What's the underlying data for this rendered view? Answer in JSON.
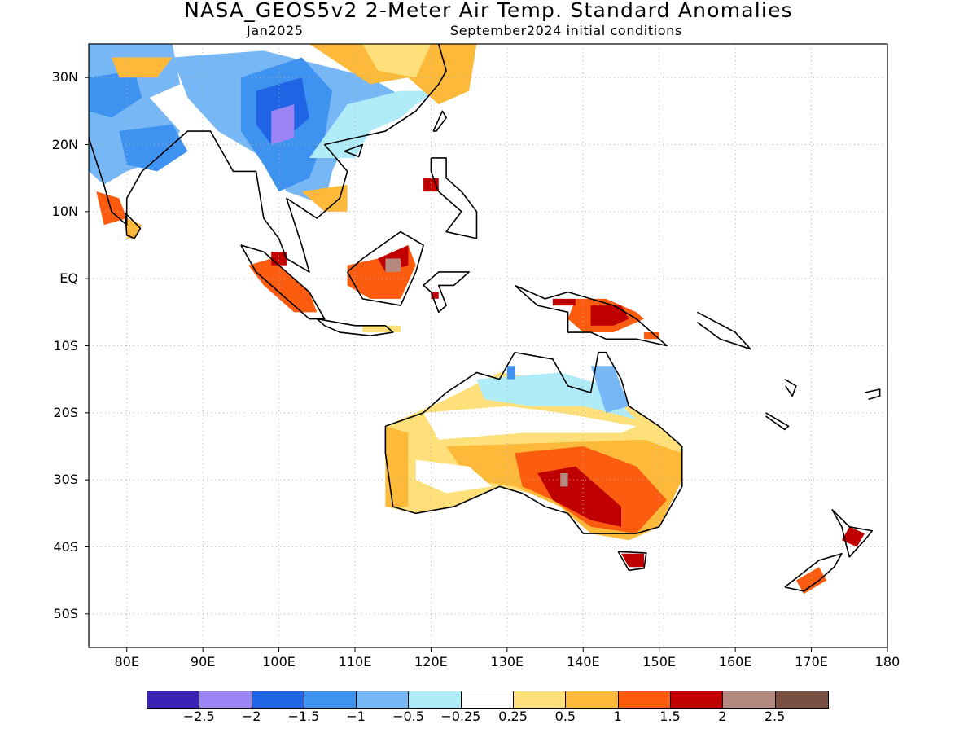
{
  "map": {
    "title": "NASA_GEOS5v2 2-Meter Air Temp. Standard Anomalies",
    "subtitle_left": "Jan2025",
    "subtitle_right": "September2024 initial conditions",
    "extent": {
      "lon": [
        75,
        180
      ],
      "lat": [
        -55,
        35
      ]
    },
    "lat_ticks": [
      {
        "value": 30,
        "label": "30N"
      },
      {
        "value": 20,
        "label": "20N"
      },
      {
        "value": 10,
        "label": "10N"
      },
      {
        "value": 0,
        "label": "EQ"
      },
      {
        "value": -10,
        "label": "10S"
      },
      {
        "value": -20,
        "label": "20S"
      },
      {
        "value": -30,
        "label": "30S"
      },
      {
        "value": -40,
        "label": "40S"
      },
      {
        "value": -50,
        "label": "50S"
      }
    ],
    "lon_ticks": [
      {
        "value": 80,
        "label": "80E"
      },
      {
        "value": 90,
        "label": "90E"
      },
      {
        "value": 100,
        "label": "100E"
      },
      {
        "value": 110,
        "label": "110E"
      },
      {
        "value": 120,
        "label": "120E"
      },
      {
        "value": 130,
        "label": "130E"
      },
      {
        "value": 140,
        "label": "140E"
      },
      {
        "value": 150,
        "label": "150E"
      },
      {
        "value": 160,
        "label": "160E"
      },
      {
        "value": 170,
        "label": "170E"
      },
      {
        "value": 180,
        "label": "180"
      }
    ],
    "colorbar": {
      "colors": [
        "#3b22b6",
        "#9d84f5",
        "#1f64e4",
        "#3e93f0",
        "#78b7f5",
        "#b0ecf8",
        "#ffffff",
        "#fde07a",
        "#fdb93a",
        "#fb5c0f",
        "#c00000",
        "#b48a80",
        "#7a5043"
      ],
      "labels": [
        "-2.5",
        "-2",
        "-1.5",
        "-1",
        "-0.5",
        "-0.25",
        "0.25",
        "0.5",
        "1",
        "1.5",
        "2",
        "2.5"
      ]
    }
  }
}
